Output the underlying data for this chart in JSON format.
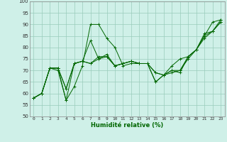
{
  "xlabel": "Humidité relative (%)",
  "xlim": [
    -0.5,
    23.5
  ],
  "ylim": [
    50,
    100
  ],
  "yticks": [
    50,
    55,
    60,
    65,
    70,
    75,
    80,
    85,
    90,
    95,
    100
  ],
  "xticks": [
    0,
    1,
    2,
    3,
    4,
    5,
    6,
    7,
    8,
    9,
    10,
    11,
    12,
    13,
    14,
    15,
    16,
    17,
    18,
    19,
    20,
    21,
    22,
    23
  ],
  "background_color": "#cff0e8",
  "grid_color": "#99ccbb",
  "line_color": "#006600",
  "series": [
    [
      58,
      60,
      71,
      70,
      57,
      63,
      72,
      90,
      90,
      84,
      80,
      72,
      73,
      73,
      73,
      65,
      68,
      70,
      69,
      76,
      79,
      85,
      91,
      92
    ],
    [
      58,
      60,
      71,
      71,
      57,
      73,
      74,
      83,
      75,
      77,
      72,
      73,
      74,
      73,
      73,
      69,
      68,
      70,
      70,
      76,
      79,
      85,
      87,
      92
    ],
    [
      58,
      60,
      71,
      71,
      62,
      73,
      74,
      73,
      75,
      76,
      72,
      73,
      74,
      73,
      73,
      69,
      68,
      69,
      70,
      75,
      79,
      84,
      87,
      91
    ],
    [
      58,
      60,
      71,
      71,
      62,
      73,
      74,
      73,
      76,
      76,
      72,
      73,
      74,
      73,
      73,
      65,
      68,
      72,
      75,
      76,
      79,
      86,
      87,
      91
    ]
  ]
}
